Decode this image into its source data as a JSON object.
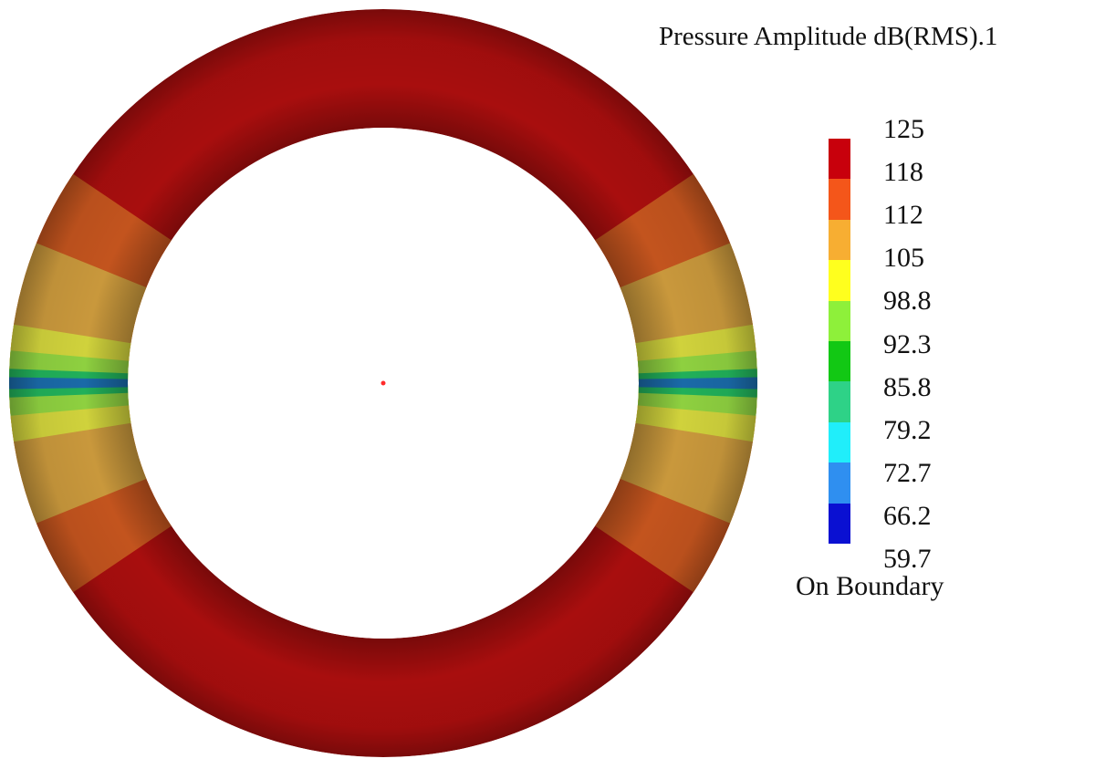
{
  "legend": {
    "title": "Pressure Amplitude dB(RMS).1",
    "footer": "On Boundary",
    "ticks": [
      "125",
      "118",
      "112",
      "105",
      "98.8",
      "92.3",
      "85.8",
      "79.2",
      "72.7",
      "66.2",
      "59.7"
    ],
    "colors": [
      "#c8000c",
      "#f4561a",
      "#f7ae32",
      "#ffff1e",
      "#8ef03a",
      "#12c814",
      "#2ed287",
      "#20eefa",
      "#2f8ff0",
      "#0a10d2"
    ]
  },
  "ring": {
    "base_color": "#a80e0e",
    "bands": [
      {
        "level": 112,
        "color": "#c3541e"
      },
      {
        "level": 105,
        "color": "#c9983c"
      },
      {
        "level": 98.8,
        "color": "#d0d23c"
      },
      {
        "level": 92.3,
        "color": "#8ed040"
      },
      {
        "level": 85.8,
        "color": "#21b05a"
      },
      {
        "level": 72.7,
        "color": "#1a6aa8"
      }
    ],
    "center_marker_color": "#ff2a2a"
  }
}
